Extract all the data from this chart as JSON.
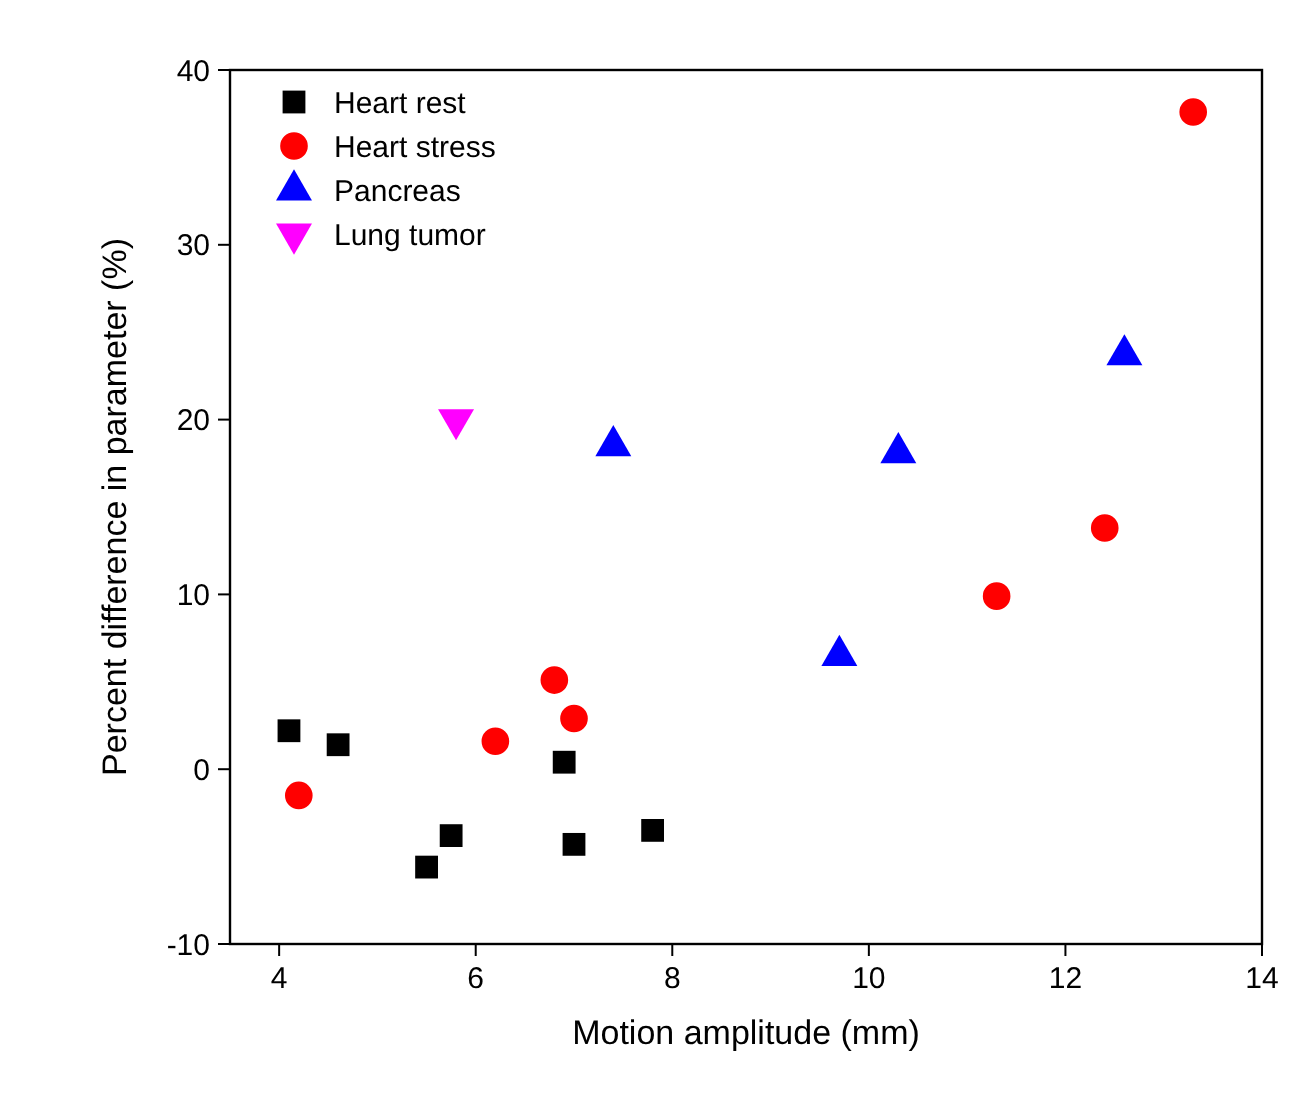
{
  "chart_data": {
    "type": "scatter",
    "xlabel": "Motion amplitude (mm)",
    "ylabel": "Percent difference in parameter (%)",
    "xlim": [
      3.5,
      14
    ],
    "xticks": [
      4,
      6,
      8,
      10,
      12,
      14
    ],
    "ylim": [
      -10,
      40
    ],
    "yticks": [
      -10,
      0,
      10,
      20,
      30,
      40
    ],
    "grid": false,
    "legend": "top left",
    "series": [
      {
        "name": "Heart rest",
        "color": "#000000",
        "marker": "square",
        "x": [
          4.1,
          4.6,
          5.5,
          5.75,
          6.9,
          7.0,
          7.8
        ],
        "values": [
          2.2,
          1.4,
          -5.6,
          -3.8,
          0.4,
          -4.3,
          -3.5
        ]
      },
      {
        "name": "Heart stress",
        "color": "#ff0000",
        "marker": "circle",
        "x": [
          4.2,
          6.2,
          6.8,
          7.0,
          11.3,
          12.4,
          13.3
        ],
        "values": [
          -1.5,
          1.6,
          5.1,
          2.9,
          9.9,
          13.8,
          37.6
        ]
      },
      {
        "name": "Pancreas",
        "color": "#0000ff",
        "marker": "triangle",
        "x": [
          7.4,
          9.7,
          10.3,
          12.6
        ],
        "values": [
          18.5,
          6.5,
          18.1,
          23.7
        ]
      },
      {
        "name": "Lung tumor",
        "color": "#ff00ff",
        "marker": "triangle-down",
        "x": [
          5.8
        ],
        "values": [
          20
        ]
      }
    ]
  }
}
